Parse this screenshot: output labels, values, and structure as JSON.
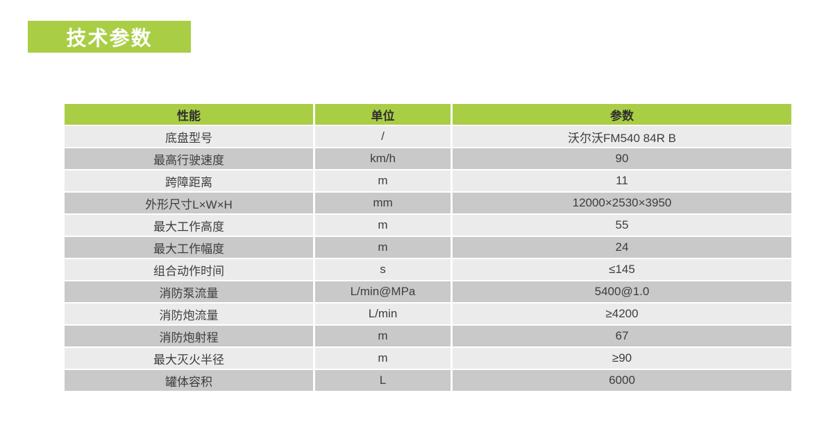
{
  "title": "技术参数",
  "colors": {
    "accent_green": "#a9ce45",
    "row_light": "#ebebeb",
    "row_dark": "#c9c9c9"
  },
  "table": {
    "columns": [
      "性能",
      "单位",
      "参数"
    ],
    "rows": [
      {
        "name": "底盘型号",
        "unit": "/",
        "value": "沃尔沃FM540 84R B"
      },
      {
        "name": "最高行驶速度",
        "unit": "km/h",
        "value": "90"
      },
      {
        "name": "跨障距离",
        "unit": "m",
        "value": "11"
      },
      {
        "name": "外形尺寸L×W×H",
        "unit": "mm",
        "value": "12000×2530×3950"
      },
      {
        "name": "最大工作高度",
        "unit": "m",
        "value": "55"
      },
      {
        "name": "最大工作幅度",
        "unit": "m",
        "value": "24"
      },
      {
        "name": "组合动作时间",
        "unit": "s",
        "value": "≤145"
      },
      {
        "name": "消防泵流量",
        "unit": "L/min@MPa",
        "value": "5400@1.0"
      },
      {
        "name": "消防炮流量",
        "unit": "L/min",
        "value": "≥4200"
      },
      {
        "name": "消防炮射程",
        "unit": "m",
        "value": "67"
      },
      {
        "name": "最大灭火半径",
        "unit": "m",
        "value": "≥90"
      },
      {
        "name": "罐体容积",
        "unit": "L",
        "value": "6000"
      }
    ]
  }
}
